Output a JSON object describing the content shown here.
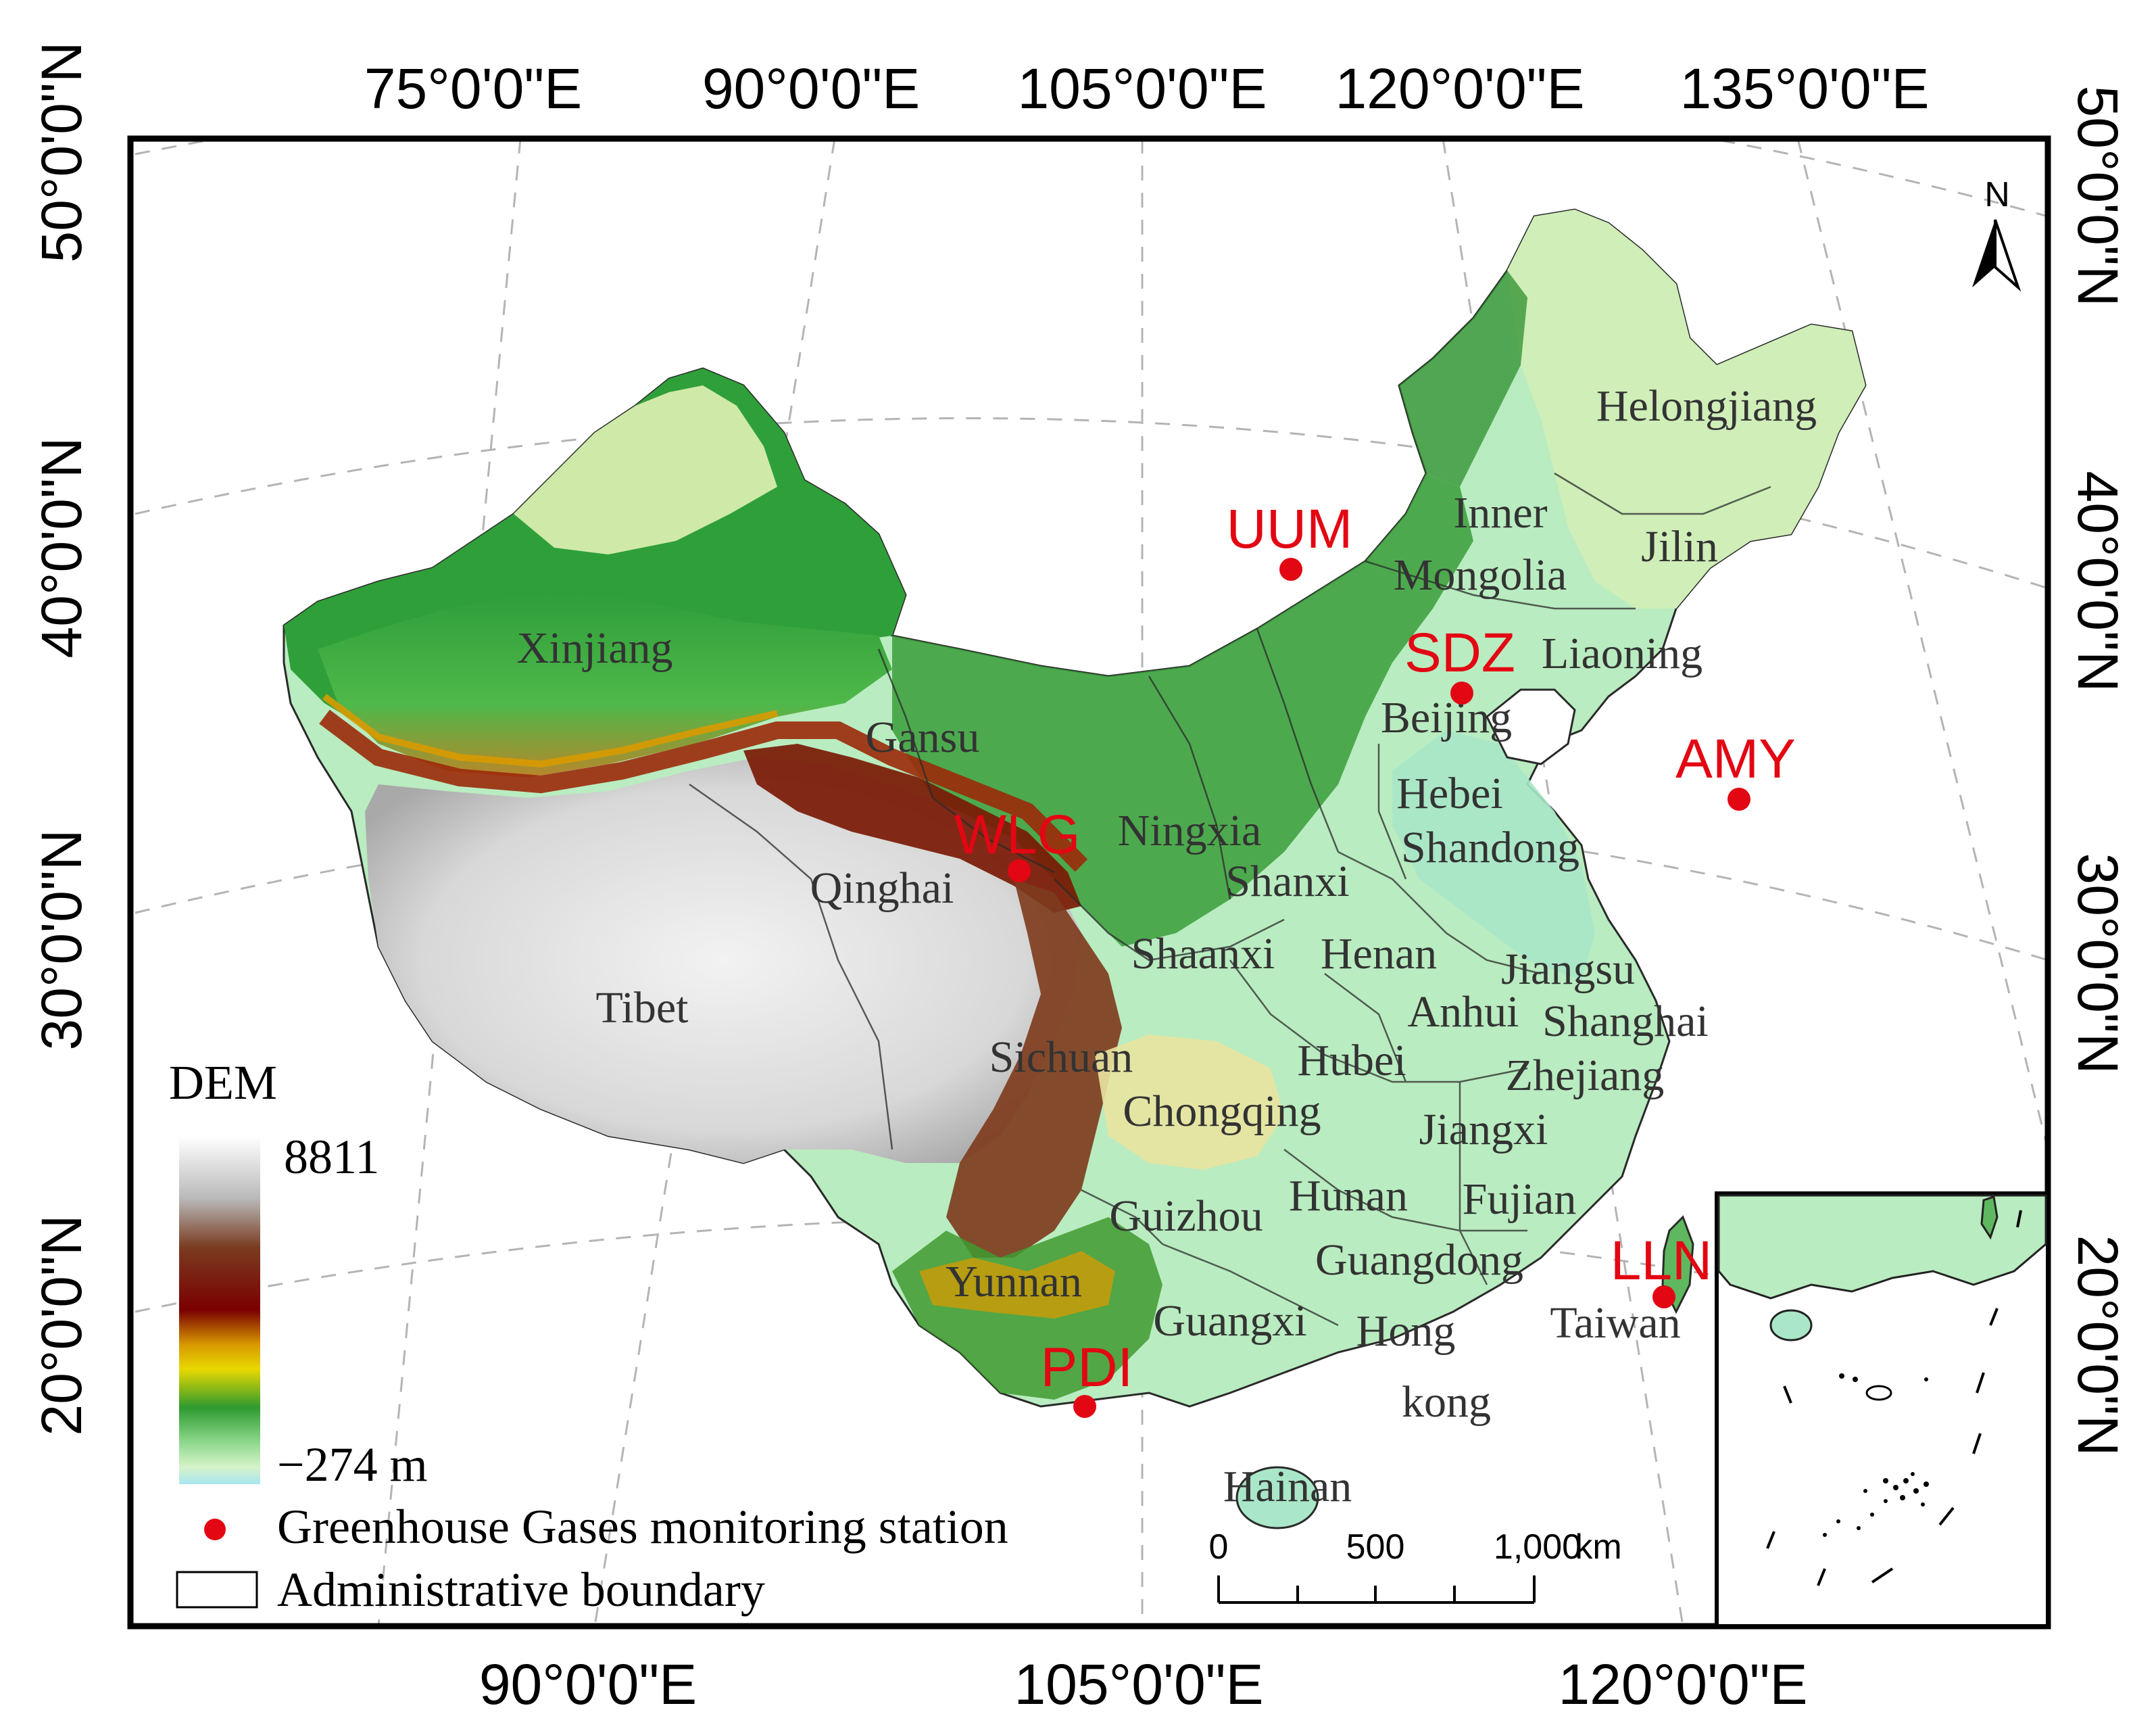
{
  "top_longitude_labels": [
    "75°0'0\"E",
    "90°0'0\"E",
    "105°0'0\"E",
    "120°0'0\"E",
    "135°0'0\"E"
  ],
  "bottom_longitude_labels": [
    "90°0'0\"E",
    "105°0'0\"E",
    "120°0'0\"E"
  ],
  "left_latitude_labels": [
    "50°0'0\"N",
    "40°0'0\"N",
    "30°0'0\"N",
    "20°0'0\"N"
  ],
  "right_latitude_labels": [
    "50°0'0\"N",
    "40°0'0\"N",
    "30°0'0\"N",
    "20°0'0\"N"
  ],
  "north_arrow": {
    "label": "N",
    "icon": "north-arrow-icon"
  },
  "stations": [
    {
      "code": "UUM",
      "color": "#e30613"
    },
    {
      "code": "SDZ",
      "color": "#e30613"
    },
    {
      "code": "AMY",
      "color": "#e30613"
    },
    {
      "code": "WLG",
      "color": "#e30613"
    },
    {
      "code": "LLN",
      "color": "#e30613"
    },
    {
      "code": "PDI",
      "color": "#e30613"
    }
  ],
  "provinces": [
    "Helongjiang",
    "Inner",
    "Mongolia",
    "Jilin",
    "Liaoning",
    "Xinjiang",
    "Beijing",
    "Gansu",
    "Hebei",
    "Ningxia",
    "Shandong",
    "Qinghai",
    "Shanxi",
    "Shaanxi",
    "Henan",
    "Jiangsu",
    "Tibet",
    "Anhui",
    "Shanghai",
    "Sichuan",
    "Hubei",
    "Zhejiang",
    "Chongqing",
    "Jiangxi",
    "Hunan",
    "Fujian",
    "Guizhou",
    "Guangdong",
    "Taiwan",
    "Yunnan",
    "Guangxi",
    "Hong",
    "kong",
    "Hainan"
  ],
  "legend": {
    "title": "DEM",
    "max_label": "8811",
    "min_label": "−274 m",
    "station_label": "Greenhouse Gases monitoring station",
    "boundary_label": "Administrative boundary",
    "dem_colors": [
      "#ffffff",
      "#b8b8b8",
      "#7a3a1a",
      "#7a0000",
      "#d8a000",
      "#e8d800",
      "#2e9a2e",
      "#8ed88e",
      "#c8f0c8",
      "#b0e8f0"
    ]
  },
  "scale_bar": {
    "labels": [
      "0",
      "500",
      "1,000"
    ],
    "unit": "km"
  },
  "colors": {
    "station": "#e30613",
    "lowland": "#b9ecc0",
    "plateau": "#e4e4e4",
    "graticule": "#b4b4b4"
  }
}
